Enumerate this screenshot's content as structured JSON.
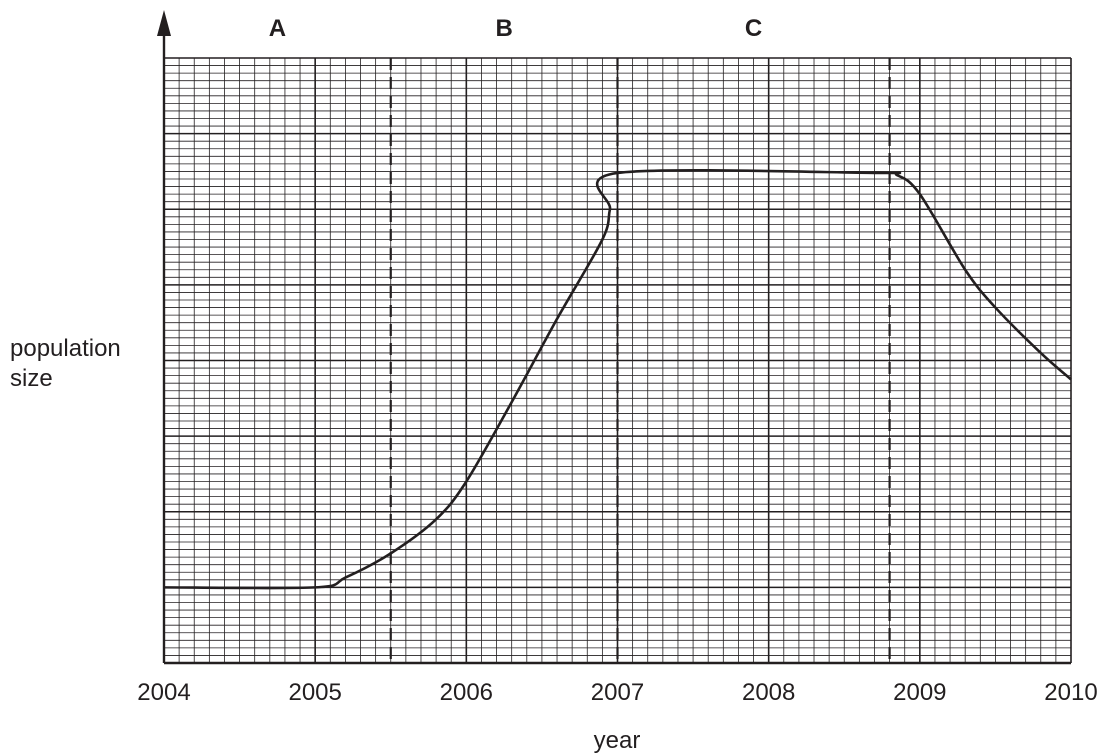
{
  "chart_data": {
    "type": "line",
    "title": "",
    "xlabel": "year",
    "ylabel": "population size",
    "xlim": [
      2004,
      2010
    ],
    "ylim": [
      0,
      8
    ],
    "x_ticks": [
      "2004",
      "2005",
      "2006",
      "2007",
      "2008",
      "2009",
      "2010"
    ],
    "y_ticks_labeled": false,
    "grid": true,
    "regions": [
      {
        "label": "A",
        "from": 2004,
        "to": 2005.5
      },
      {
        "label": "B",
        "from": 2005.5,
        "to": 2007
      },
      {
        "label": "C",
        "from": 2007,
        "to": 2008.8
      }
    ],
    "boundaries": [
      2005.5,
      2007,
      2008.8
    ],
    "series": [
      {
        "points": [
          [
            2004,
            1.0
          ],
          [
            2005,
            1.0
          ],
          [
            2005.2,
            1.13
          ],
          [
            2005.5,
            1.45
          ],
          [
            2005.8,
            1.9
          ],
          [
            2006,
            2.4
          ],
          [
            2006.3,
            3.45
          ],
          [
            2006.6,
            4.55
          ],
          [
            2006.9,
            5.6
          ],
          [
            2006.95,
            6.0
          ],
          [
            2007,
            6.48
          ],
          [
            2008.7,
            6.48
          ],
          [
            2008.85,
            6.45
          ],
          [
            2009,
            6.2
          ],
          [
            2009.3,
            5.2
          ],
          [
            2009.5,
            4.7
          ],
          [
            2009.8,
            4.1
          ],
          [
            2010,
            3.75
          ]
        ]
      }
    ]
  }
}
